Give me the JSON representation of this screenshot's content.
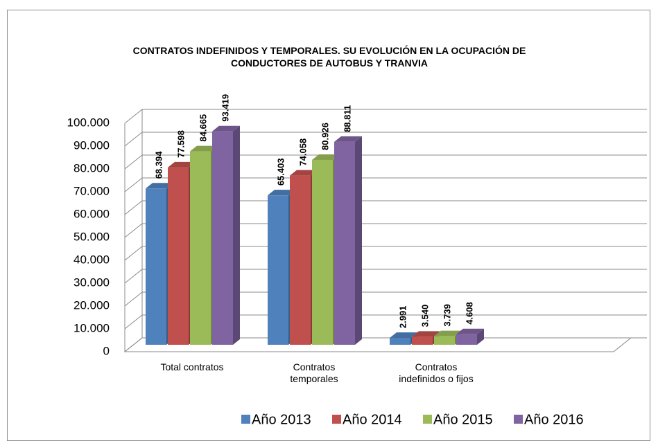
{
  "chart_data": {
    "type": "bar3d",
    "title": "CONTRATOS INDEFINIDOS Y TEMPORALES. SU EVOLUCIÓN EN LA OCUPACIÓN DE CONDUCTORES DE AUTOBUS Y TRANVIA",
    "categories": [
      "Total contratos",
      "Contratos temporales",
      "Contratos indefinidos o fijos"
    ],
    "series": [
      {
        "name": "Año 2013",
        "color": "#4f81bd",
        "values": [
          68394,
          65403,
          2991
        ],
        "value_labels": [
          "68.394",
          "65.403",
          "2.991"
        ]
      },
      {
        "name": "Año 2014",
        "color": "#c0504d",
        "values": [
          77598,
          74058,
          3540
        ],
        "value_labels": [
          "77.598",
          "74.058",
          "3.540"
        ]
      },
      {
        "name": "Año 2015",
        "color": "#9bbb59",
        "values": [
          84665,
          80926,
          3739
        ],
        "value_labels": [
          "84.665",
          "80.926",
          "3.739"
        ]
      },
      {
        "name": "Año 2016",
        "color": "#8064a2",
        "values": [
          93419,
          88811,
          4608
        ],
        "value_labels": [
          "93.419",
          "88.811",
          "4.608"
        ]
      }
    ],
    "ylim": [
      0,
      100000
    ],
    "yticks": [
      0,
      {
        "value": 10000,
        "label": "10.000"
      },
      {
        "value": 20000,
        "label": "20.000"
      },
      {
        "value": 30000,
        "label": "30.000"
      },
      {
        "value": 40000,
        "label": "40.000"
      },
      {
        "value": 50000,
        "label": "50.000"
      },
      {
        "value": 60000,
        "label": "60.000"
      },
      {
        "value": 70000,
        "label": "70.000"
      },
      {
        "value": 80000,
        "label": "80.000"
      },
      {
        "value": 90000,
        "label": "90.000"
      },
      {
        "value": 100000,
        "label": "100.000"
      }
    ],
    "grid": true,
    "legend": "bottom"
  }
}
